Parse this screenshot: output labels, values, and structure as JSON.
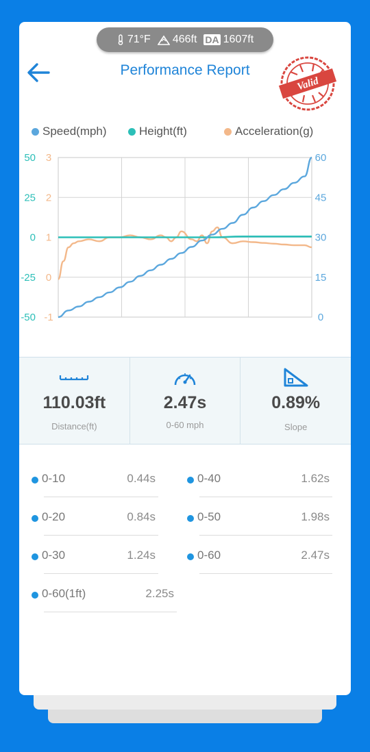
{
  "weather": {
    "temperature": "71°F",
    "elevation": "466ft",
    "da_label": "DA",
    "density_altitude": "1607ft"
  },
  "header": {
    "title": "Performance Report",
    "stamp_text": "Valid"
  },
  "colors": {
    "speed": "#5ba7dd",
    "height": "#2cbfb8",
    "acceleration": "#f3b88a",
    "accent": "#1f84d8"
  },
  "chart_data": {
    "type": "line",
    "legend": [
      "Speed(mph)",
      "Height(ft)",
      "Acceleration(g)"
    ],
    "legend_position": "top",
    "grid": true,
    "axes": {
      "height_axis": {
        "side": "left-outer",
        "ticks": [
          "50",
          "25",
          "0",
          "-25",
          "-50"
        ],
        "range": [
          -50,
          50
        ]
      },
      "acceleration_axis": {
        "side": "left-inner",
        "ticks": [
          "3",
          "2",
          "1",
          "0",
          "-1"
        ],
        "range": [
          -1,
          3
        ]
      },
      "speed_axis": {
        "side": "right",
        "ticks": [
          "60",
          "45",
          "30",
          "15",
          "0"
        ],
        "range": [
          0,
          60
        ]
      }
    },
    "x_range": [
      0,
      2.47
    ],
    "series": [
      {
        "name": "Speed(mph)",
        "axis": "speed_axis",
        "x": [
          0,
          0.1,
          0.2,
          0.3,
          0.4,
          0.5,
          0.6,
          0.7,
          0.8,
          0.9,
          1.0,
          1.1,
          1.2,
          1.3,
          1.4,
          1.5,
          1.6,
          1.7,
          1.8,
          1.9,
          2.0,
          2.1,
          2.2,
          2.3,
          2.4,
          2.47
        ],
        "y": [
          0,
          2.5,
          4.0,
          5.8,
          7.5,
          9.3,
          11.2,
          13.3,
          15.5,
          17.6,
          19.7,
          21.9,
          24.1,
          26.4,
          28.8,
          31.0,
          33.2,
          35.4,
          38.5,
          41.2,
          43.6,
          45.9,
          48.1,
          50.5,
          52.9,
          60
        ]
      },
      {
        "name": "Height(ft)",
        "axis": "height_axis",
        "x": [
          0,
          0.3,
          0.6,
          0.9,
          1.2,
          1.5,
          1.8,
          2.1,
          2.47
        ],
        "y": [
          0,
          0,
          0,
          0,
          0,
          0,
          0.5,
          0.5,
          0.5
        ]
      },
      {
        "name": "Acceleration(g)",
        "axis": "acceleration_axis",
        "x": [
          0,
          0.05,
          0.1,
          0.15,
          0.2,
          0.3,
          0.4,
          0.5,
          0.6,
          0.7,
          0.8,
          0.9,
          1.0,
          1.05,
          1.1,
          1.15,
          1.2,
          1.3,
          1.35,
          1.4,
          1.45,
          1.5,
          1.55,
          1.6,
          1.7,
          1.8,
          1.9,
          2.0,
          2.1,
          2.2,
          2.3,
          2.4,
          2.47
        ],
        "y": [
          -0.05,
          0.4,
          0.75,
          0.85,
          0.9,
          0.95,
          0.9,
          1.0,
          1.0,
          1.05,
          1.0,
          0.95,
          1.05,
          1.0,
          0.9,
          1.0,
          1.15,
          0.95,
          0.9,
          1.05,
          0.85,
          1.15,
          1.25,
          1.0,
          0.85,
          0.9,
          0.88,
          0.86,
          0.84,
          0.82,
          0.8,
          0.8,
          0.75
        ]
      }
    ]
  },
  "stats": [
    {
      "value": "110.03ft",
      "label": "Distance(ft)",
      "icon": "ruler-icon"
    },
    {
      "value": "2.47s",
      "label": "0-60 mph",
      "icon": "speedometer-icon"
    },
    {
      "value": "0.89%",
      "label": "Slope",
      "icon": "slope-icon"
    }
  ],
  "splits": [
    {
      "name": "0-10",
      "time": "0.44s"
    },
    {
      "name": "0-40",
      "time": "1.62s"
    },
    {
      "name": "0-20",
      "time": "0.84s"
    },
    {
      "name": "0-50",
      "time": "1.98s"
    },
    {
      "name": "0-30",
      "time": "1.24s"
    },
    {
      "name": "0-60",
      "time": "2.47s"
    },
    {
      "name": "0-60(1ft)",
      "time": "2.25s"
    }
  ]
}
